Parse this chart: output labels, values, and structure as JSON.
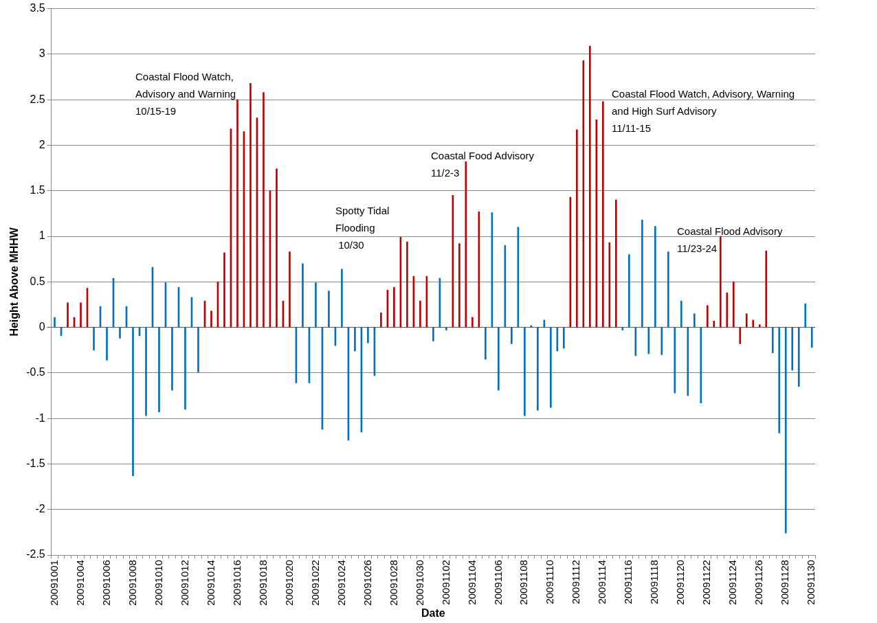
{
  "chart_data": {
    "type": "bar",
    "xlabel": "Date",
    "ylabel": "Height Above MHHW",
    "categories": [
      "20091001",
      null,
      null,
      null,
      "20091004",
      null,
      null,
      null,
      "20091006",
      null,
      null,
      null,
      "20091008",
      null,
      null,
      null,
      "20091010",
      null,
      null,
      null,
      "20091012",
      null,
      null,
      null,
      "20091014",
      null,
      null,
      null,
      "20091016",
      null,
      null,
      null,
      "20091018",
      null,
      null,
      null,
      "20091020",
      null,
      null,
      null,
      "20091022",
      null,
      null,
      null,
      "20091024",
      null,
      null,
      null,
      "20091026",
      null,
      null,
      null,
      "20091028",
      null,
      null,
      null,
      "20091030",
      null,
      null,
      null,
      "20091102",
      null,
      null,
      null,
      "20091104",
      null,
      null,
      null,
      "20091106",
      null,
      null,
      null,
      "20091108",
      null,
      null,
      null,
      "20091110",
      null,
      null,
      null,
      "20091112",
      null,
      null,
      null,
      "20091114",
      null,
      null,
      null,
      "20091116",
      null,
      null,
      null,
      "20091118",
      null,
      null,
      null,
      "20091120",
      null,
      null,
      null,
      "20091122",
      null,
      null,
      null,
      "20091124",
      null,
      null,
      null,
      "20091126",
      null,
      null,
      null,
      "20091128",
      null,
      null,
      null,
      "20091130"
    ],
    "values": [
      0.11,
      -0.09,
      0.27,
      0.11,
      0.27,
      0.43,
      -0.25,
      0.23,
      -0.36,
      0.54,
      -0.12,
      0.23,
      -1.63,
      -0.09,
      -0.97,
      0.66,
      -0.93,
      0.49,
      -0.69,
      0.44,
      -0.9,
      0.33,
      -0.49,
      0.29,
      0.18,
      0.5,
      0.82,
      2.18,
      2.5,
      2.15,
      2.68,
      2.3,
      2.58,
      1.5,
      1.74,
      0.29,
      0.83,
      -0.61,
      0.7,
      -0.61,
      0.49,
      -1.12,
      0.4,
      -0.2,
      0.64,
      -1.24,
      -0.26,
      -1.15,
      -0.17,
      -0.53,
      0.16,
      0.41,
      0.44,
      0.99,
      0.94,
      0.56,
      0.29,
      0.56,
      -0.15,
      0.54,
      -0.03,
      1.45,
      0.92,
      1.82,
      0.11,
      1.27,
      -0.35,
      1.26,
      -0.69,
      0.9,
      -0.18,
      1.1,
      -0.97,
      0.02,
      -0.91,
      0.08,
      -0.88,
      -0.26,
      -0.23,
      1.43,
      2.17,
      2.93,
      3.09,
      2.28,
      2.48,
      0.93,
      1.4,
      -0.03,
      0.8,
      -0.31,
      1.18,
      -0.29,
      1.11,
      -0.3,
      0.83,
      -0.72,
      0.29,
      -0.75,
      0.15,
      -0.83,
      0.24,
      0.07,
      1.0,
      0.38,
      0.5,
      -0.18,
      0.15,
      0.08,
      0.03,
      0.84,
      -0.28,
      -1.16,
      -2.26,
      -0.47,
      -0.65,
      0.26,
      -0.22
    ],
    "colors": [
      "#0070c0",
      "#0070c0",
      "#c00000",
      "#c00000",
      "#c00000",
      "#c00000",
      "#0070c0",
      "#0070c0",
      "#0070c0",
      "#0070c0",
      "#0070c0",
      "#0070c0",
      "#0070c0",
      "#0070c0",
      "#0070c0",
      "#0070c0",
      "#0070c0",
      "#0070c0",
      "#0070c0",
      "#0070c0",
      "#0070c0",
      "#0070c0",
      "#0070c0",
      "#c00000",
      "#c00000",
      "#c00000",
      "#c00000",
      "#c00000",
      "#c00000",
      "#c00000",
      "#c00000",
      "#c00000",
      "#c00000",
      "#c00000",
      "#c00000",
      "#c00000",
      "#c00000",
      "#0070c0",
      "#0070c0",
      "#0070c0",
      "#0070c0",
      "#0070c0",
      "#0070c0",
      "#0070c0",
      "#0070c0",
      "#0070c0",
      "#0070c0",
      "#0070c0",
      "#0070c0",
      "#0070c0",
      "#c00000",
      "#c00000",
      "#c00000",
      "#c00000",
      "#c00000",
      "#c00000",
      "#c00000",
      "#c00000",
      "#0070c0",
      "#0070c0",
      "#0070c0",
      "#c00000",
      "#c00000",
      "#c00000",
      "#c00000",
      "#c00000",
      "#0070c0",
      "#0070c0",
      "#0070c0",
      "#0070c0",
      "#0070c0",
      "#0070c0",
      "#0070c0",
      "#0070c0",
      "#0070c0",
      "#0070c0",
      "#0070c0",
      "#0070c0",
      "#0070c0",
      "#c00000",
      "#c00000",
      "#c00000",
      "#c00000",
      "#c00000",
      "#c00000",
      "#c00000",
      "#c00000",
      "#0070c0",
      "#0070c0",
      "#0070c0",
      "#0070c0",
      "#0070c0",
      "#0070c0",
      "#0070c0",
      "#0070c0",
      "#0070c0",
      "#0070c0",
      "#0070c0",
      "#0070c0",
      "#0070c0",
      "#c00000",
      "#c00000",
      "#c00000",
      "#c00000",
      "#c00000",
      "#c00000",
      "#c00000",
      "#c00000",
      "#c00000",
      "#c00000",
      "#0070c0",
      "#0070c0",
      "#0070c0",
      "#0070c0",
      "#0070c0",
      "#0070c0",
      "#0070c0"
    ],
    "ylim": [
      -2.5,
      3.5
    ],
    "yticks": [
      -2.5,
      -2,
      -1.5,
      -1,
      -0.5,
      0,
      0.5,
      1,
      1.5,
      2,
      2.5,
      3,
      3.5
    ],
    "grid": "y",
    "legend": false,
    "annotations": [
      "Coastal Flood Watch,\nAdvisory and Warning\n10/15-19",
      "Spotty Tidal\nFlooding\n 10/30",
      "Coastal Food Advisory\n11/2-3",
      "Coastal Flood Watch, Advisory, Warning\nand High Surf Advisory\n11/11-15",
      "Coastal Flood Advisory\n11/23-24"
    ]
  }
}
